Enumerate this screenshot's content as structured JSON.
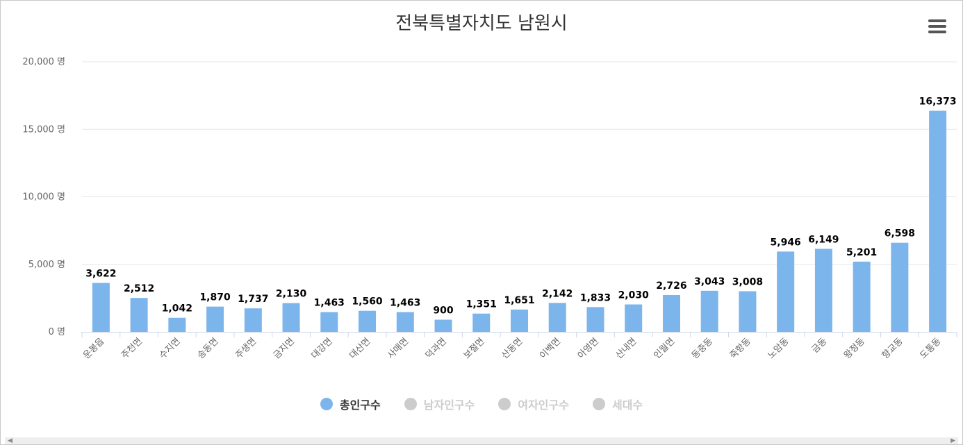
{
  "colors": {
    "bar": "#7cb5ec",
    "legend_inactive": "#cccccc",
    "grid": "#e6e6e6",
    "axis_line": "#ccd6eb",
    "label": "#000000",
    "axis_text": "#666666"
  },
  "icons": {
    "menu": "hamburger-menu-icon"
  },
  "chart_data": {
    "type": "bar",
    "title": "전북특별자치도 남원시",
    "categories": [
      "운봉읍",
      "주천면",
      "수지면",
      "송동면",
      "주생면",
      "금지면",
      "대강면",
      "대산면",
      "사매면",
      "덕과면",
      "보절면",
      "산동면",
      "이백면",
      "아영면",
      "산내면",
      "인월면",
      "동충동",
      "죽항동",
      "노암동",
      "금동",
      "왕정동",
      "향교동",
      "도통동"
    ],
    "series": [
      {
        "name": "총인구수",
        "values": [
          3622,
          2512,
          1042,
          1870,
          1737,
          2130,
          1463,
          1560,
          1463,
          900,
          1351,
          1651,
          2142,
          1833,
          2030,
          2726,
          3043,
          3008,
          5946,
          6149,
          5201,
          6598,
          16373
        ],
        "labels": [
          "3,622",
          "2,512",
          "1,042",
          "1,870",
          "1,737",
          "2,130",
          "1,463",
          "1,560",
          "1,463",
          "900",
          "1,351",
          "1,651",
          "2,142",
          "1,833",
          "2,030",
          "2,726",
          "3,043",
          "3,008",
          "5,946",
          "6,149",
          "5,201",
          "6,598",
          "16,373"
        ]
      }
    ],
    "ylim": [
      0,
      20000
    ],
    "yticks": [
      0,
      5000,
      10000,
      15000,
      20000
    ],
    "ytick_labels": [
      "0 명",
      "5,000 명",
      "10,000 명",
      "15,000 명",
      "20,000 명"
    ],
    "grid": true,
    "legend": {
      "position": "bottom",
      "items": [
        {
          "label": "총인구수",
          "active": true
        },
        {
          "label": "남자인구수",
          "active": false
        },
        {
          "label": "여자인구수",
          "active": false
        },
        {
          "label": "세대수",
          "active": false
        }
      ]
    }
  }
}
